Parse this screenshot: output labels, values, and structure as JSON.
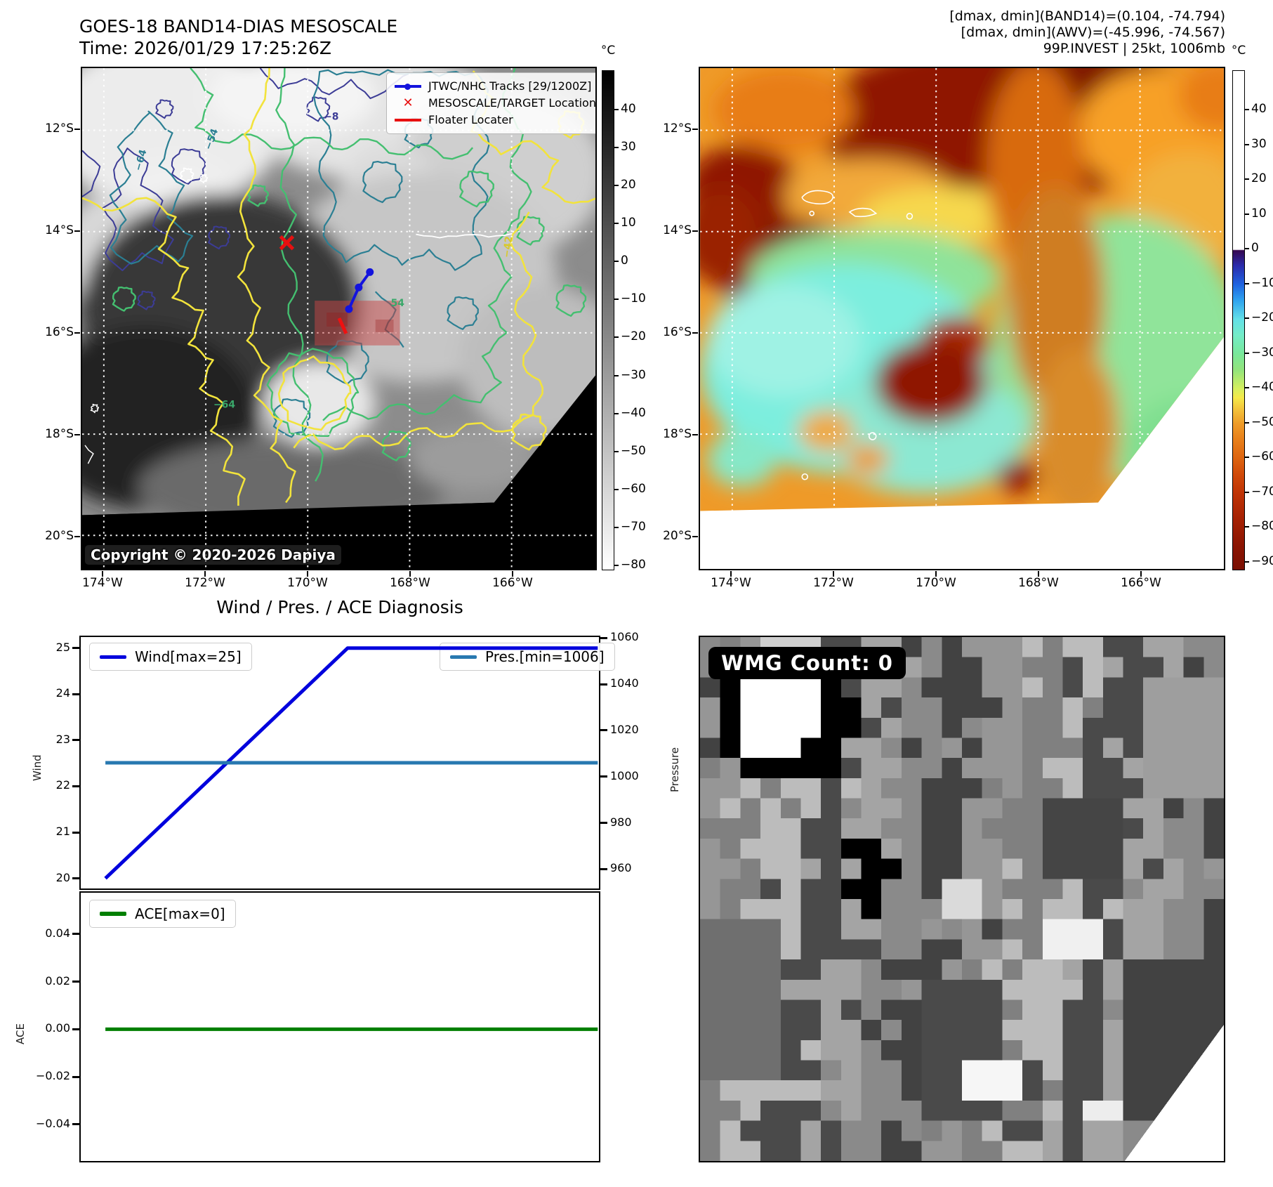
{
  "figure": {
    "left_map": {
      "title": "GOES-18 BAND14-DIAS MESOSCALE",
      "subtitle": "Time: 2026/01/29 17:25:26Z",
      "legend": {
        "tracks": "JTWC/NHC Tracks [29/1200Z]",
        "target": "MESOSCALE/TARGET Location",
        "floater": "Floater Locater"
      },
      "copyright": "Copyright © 2020-2026 Dapiya",
      "x_tick_labels": [
        "174°W",
        "172°W",
        "170°W",
        "168°W",
        "166°W"
      ],
      "y_tick_labels": [
        "12°S",
        "14°S",
        "16°S",
        "18°S",
        "20°S"
      ],
      "colorbar": {
        "unit": "°C",
        "tick_labels": [
          "40",
          "30",
          "20",
          "10",
          "0",
          "−10",
          "−20",
          "−30",
          "−40",
          "−50",
          "−60",
          "−70",
          "−80"
        ]
      },
      "contour_labels": [
        "−8",
        "−64",
        "−54",
        "−42",
        "54",
        "−64"
      ]
    },
    "right_map": {
      "header_lines": [
        "[dmax, dmin](BAND14)=(0.104, -74.794)",
        "[dmax, dmin](AWV)=(-45.996, -74.567)",
        "99P.INVEST | 25kt, 1006mb"
      ],
      "x_tick_labels": [
        "174°W",
        "172°W",
        "170°W",
        "168°W",
        "166°W"
      ],
      "y_tick_labels": [
        "12°S",
        "14°S",
        "16°S",
        "18°S",
        "20°S"
      ],
      "colorbar": {
        "unit": "°C",
        "tick_labels": [
          "40",
          "30",
          "20",
          "10",
          "0",
          "−10",
          "−20",
          "−30",
          "−40",
          "−50",
          "−60",
          "−70",
          "−80",
          "−90"
        ]
      }
    },
    "wmg": {
      "count_label": "WMG Count: 0"
    }
  },
  "chart_data": [
    {
      "id": "wind-pressure",
      "type": "line",
      "title": "Wind / Pres. / ACE Diagnosis",
      "series": [
        {
          "name": "Wind[max=25]",
          "color": "#0000dd",
          "axis": "left",
          "x_frac": [
            0.05,
            0.515,
            0.995
          ],
          "values": [
            20,
            25,
            25
          ]
        },
        {
          "name": "Pres.[min=1006]",
          "color": "#2878b0",
          "axis": "right",
          "x_frac": [
            0.05,
            0.995
          ],
          "values": [
            1006,
            1006
          ]
        }
      ],
      "left_axis": {
        "label": "Wind",
        "ticks": [
          25,
          24,
          23,
          22,
          21,
          20
        ],
        "tick_labels": [
          "25",
          "24",
          "23",
          "22",
          "21",
          "20"
        ],
        "range": [
          19.75,
          25.27
        ]
      },
      "right_axis": {
        "label": "Pressure",
        "ticks": [
          1060,
          1040,
          1020,
          1000,
          980,
          960
        ],
        "tick_labels": [
          "1060",
          "1040",
          "1020",
          "1000",
          "980",
          "960"
        ],
        "range": [
          951,
          1061
        ]
      },
      "grid": false,
      "legend_position": "top-left and top-right inside"
    },
    {
      "id": "ace",
      "type": "line",
      "series": [
        {
          "name": "ACE[max=0]",
          "color": "#007f00",
          "axis": "left",
          "x_frac": [
            0.05,
            0.995
          ],
          "values": [
            0,
            0
          ]
        }
      ],
      "left_axis": {
        "label": "ACE",
        "ticks": [
          0.04,
          0.02,
          0,
          -0.02,
          -0.04
        ],
        "tick_labels": [
          "0.04",
          "0.02",
          "0.00",
          "−0.02",
          "−0.04"
        ],
        "range": [
          -0.056,
          0.058
        ]
      },
      "grid": false,
      "legend_position": "top-left inside"
    }
  ]
}
